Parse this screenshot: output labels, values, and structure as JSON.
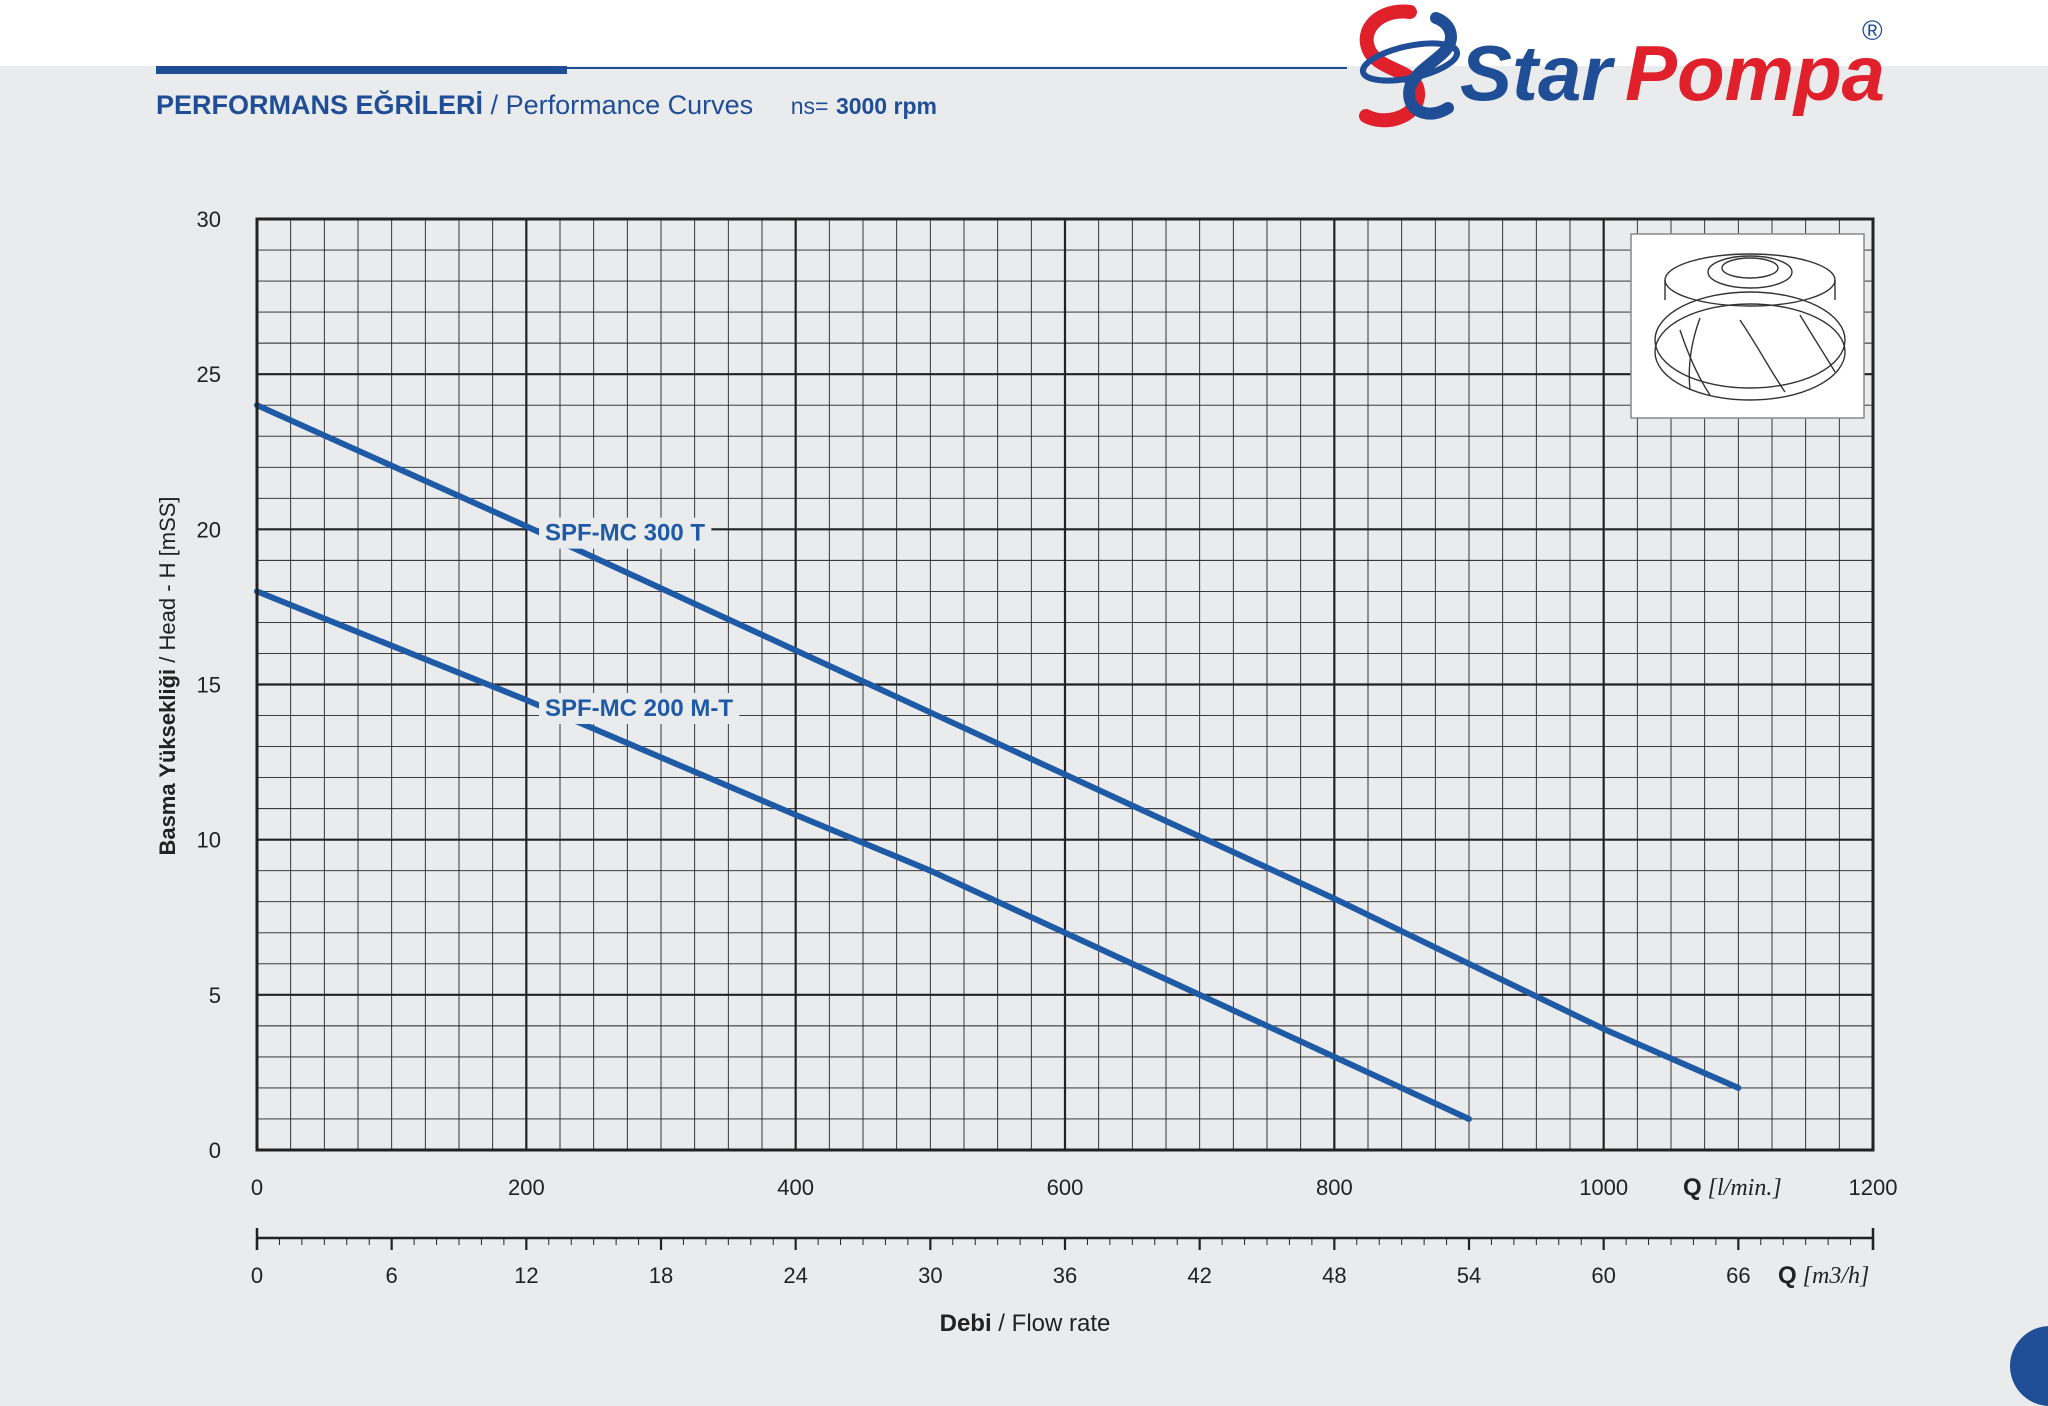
{
  "header": {
    "title_tr": "PERFORMANS EĞRİLERİ",
    "title_sep": "/",
    "title_en": "Performance Curves",
    "ns_label": "ns=",
    "ns_value": "3000 rpm"
  },
  "logo": {
    "text_star": "Star",
    "text_pompa": "Pompa",
    "registered": "®",
    "colors": {
      "blue": "#1f4e96",
      "red": "#e0202a"
    }
  },
  "colors": {
    "curve": "#1f5aa6",
    "grid": "#222222",
    "background": "#e9ebec",
    "accent": "#1f4e96"
  },
  "chart_data": {
    "type": "line",
    "ylabel_tr": "Basma Yüksekliği",
    "ylabel_en": "Head - H [mSS]",
    "xlabel_tr": "Debi",
    "xlabel_en": "Flow rate",
    "x_unit_label": "Q",
    "x_unit": "[l/min.]",
    "x2_unit_label": "Q",
    "x2_unit": "[m3/h]",
    "ylim": [
      0,
      30
    ],
    "xlim": [
      0,
      1200
    ],
    "x2lim": [
      0,
      72
    ],
    "yticks": [
      0,
      5,
      10,
      15,
      20,
      25,
      30
    ],
    "xticks": [
      0,
      200,
      400,
      600,
      800,
      1000,
      1200
    ],
    "x2ticks": [
      0,
      6,
      12,
      18,
      24,
      30,
      36,
      42,
      48,
      54,
      60,
      66
    ],
    "grid": true,
    "series": [
      {
        "name": "SPF-MC 300 T",
        "x": [
          0,
          200,
          400,
          600,
          800,
          1000,
          1100
        ],
        "y": [
          24,
          20.1,
          16.1,
          12.1,
          8.1,
          3.9,
          2
        ]
      },
      {
        "name": "SPF-MC 200 M-T",
        "x": [
          0,
          200,
          400,
          500,
          600,
          700,
          800,
          900
        ],
        "y": [
          18,
          14.5,
          10.8,
          9,
          7,
          5,
          3,
          1
        ]
      }
    ]
  }
}
